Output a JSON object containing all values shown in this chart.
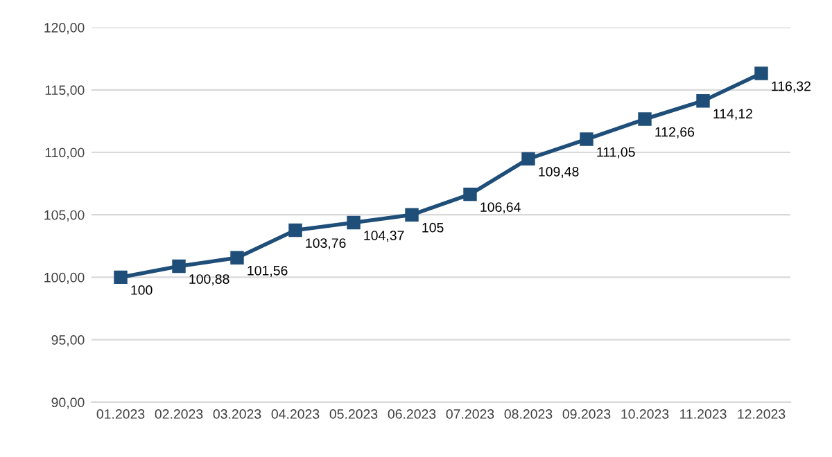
{
  "chart_data": {
    "type": "line",
    "categories": [
      "01.2023",
      "02.2023",
      "03.2023",
      "04.2023",
      "05.2023",
      "06.2023",
      "07.2023",
      "08.2023",
      "09.2023",
      "10.2023",
      "11.2023",
      "12.2023"
    ],
    "series": [
      {
        "color": "#1f4e79",
        "values": [
          100,
          100.88,
          101.56,
          103.76,
          104.37,
          105,
          106.64,
          109.48,
          111.05,
          112.66,
          114.12,
          116.32
        ],
        "value_labels": [
          "100",
          "100,88",
          "101,56",
          "103,76",
          "104,37",
          "105",
          "106,64",
          "109,48",
          "111,05",
          "112,66",
          "114,12",
          "116,32"
        ]
      }
    ],
    "ylim": [
      90,
      120
    ],
    "yticks": [
      {
        "value": 90,
        "label": "90,00"
      },
      {
        "value": 95,
        "label": "95,00"
      },
      {
        "value": 100,
        "label": "100,00"
      },
      {
        "value": 105,
        "label": "105,00"
      },
      {
        "value": 110,
        "label": "110,00"
      },
      {
        "value": 115,
        "label": "115,00"
      },
      {
        "value": 120,
        "label": "120,00"
      }
    ],
    "grid": "y",
    "marker": "square",
    "line_style": "solid"
  }
}
